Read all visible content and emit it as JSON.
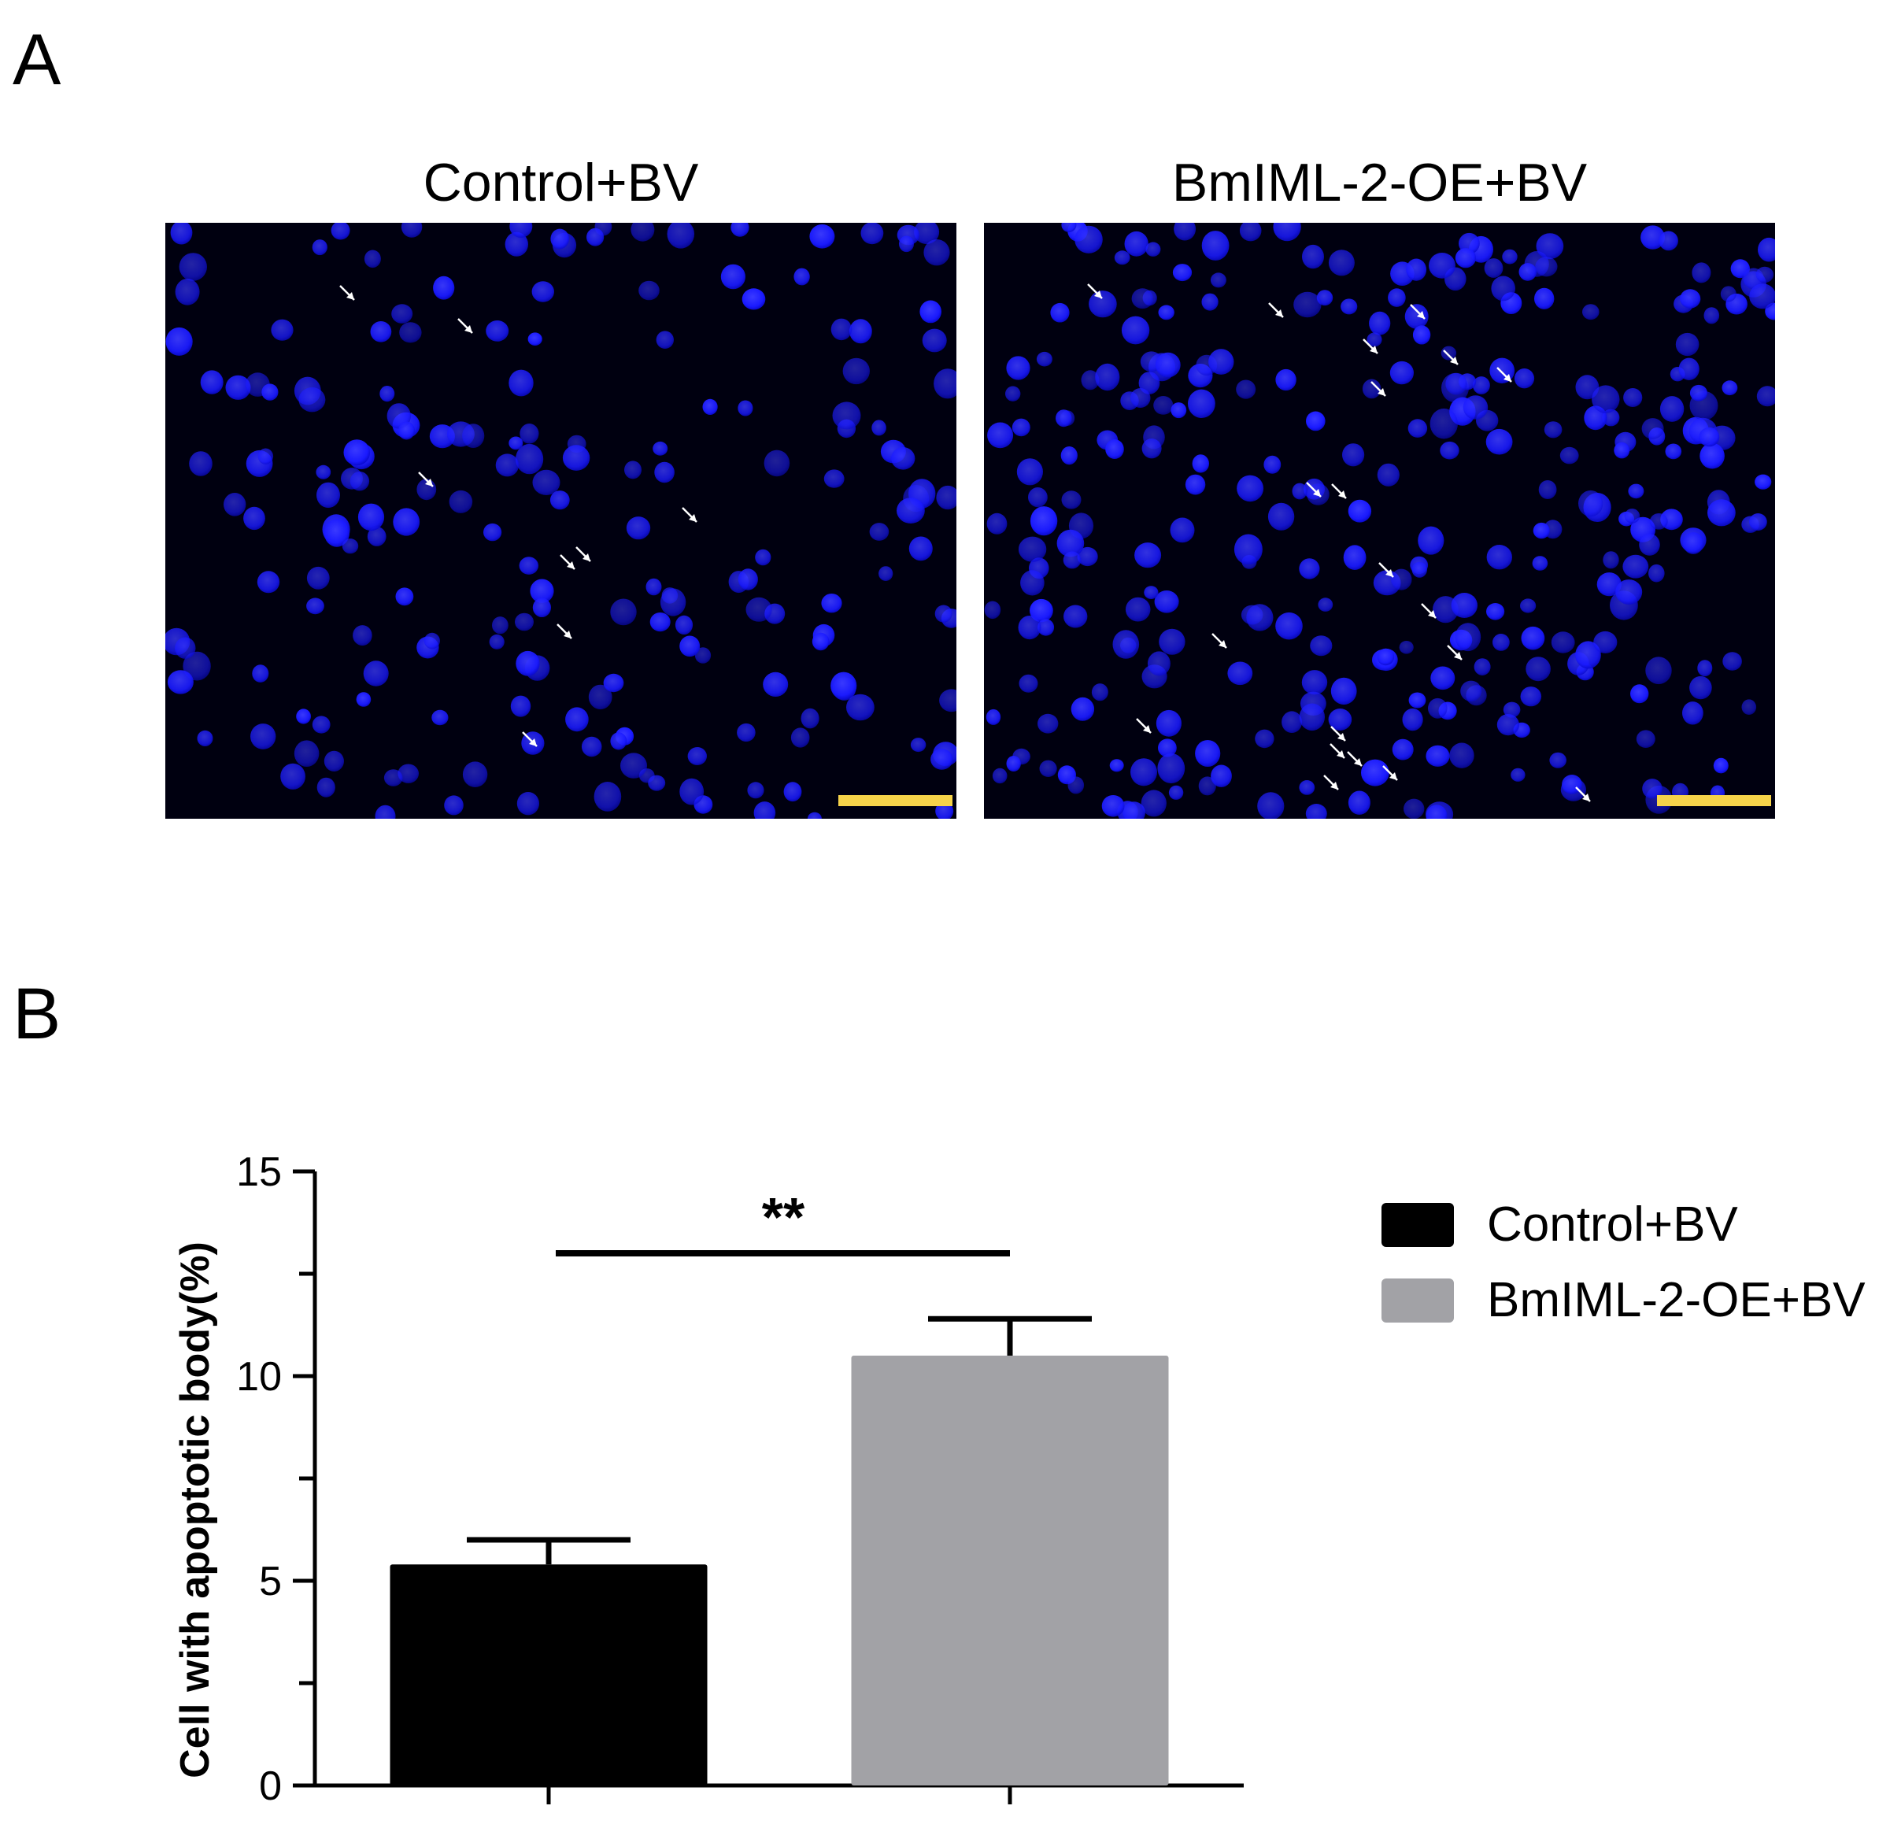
{
  "panels": {
    "a_letter": "A",
    "b_letter": "B"
  },
  "images": {
    "left_title": "Control+BV",
    "right_title": "BmIML-2-OE+BV",
    "background_color": "#000010",
    "nucleus_color": "#1a1aff",
    "scale_bar_color": "#f6d34a",
    "arrow_color": "#ffffff"
  },
  "chart_data": {
    "type": "bar",
    "categories": [
      "Control+BV",
      "BmIML-2-OE+BV"
    ],
    "values": [
      5.4,
      10.5
    ],
    "errors": [
      0.6,
      0.9
    ],
    "colors": [
      "#000000",
      "#a2a2a6"
    ],
    "ylabel": "Cell with apoptotic body(%)",
    "ylim": [
      0,
      15
    ],
    "yticks": [
      "0",
      "5",
      "10",
      "15"
    ],
    "ytick_values": [
      0,
      5,
      10,
      15
    ],
    "significance": "**",
    "legend": [
      {
        "label": "Control+BV",
        "color": "#000000"
      },
      {
        "label": "BmIML-2-OE+BV",
        "color": "#a2a2a6"
      }
    ],
    "legend_position": "top-right",
    "grid": false
  }
}
